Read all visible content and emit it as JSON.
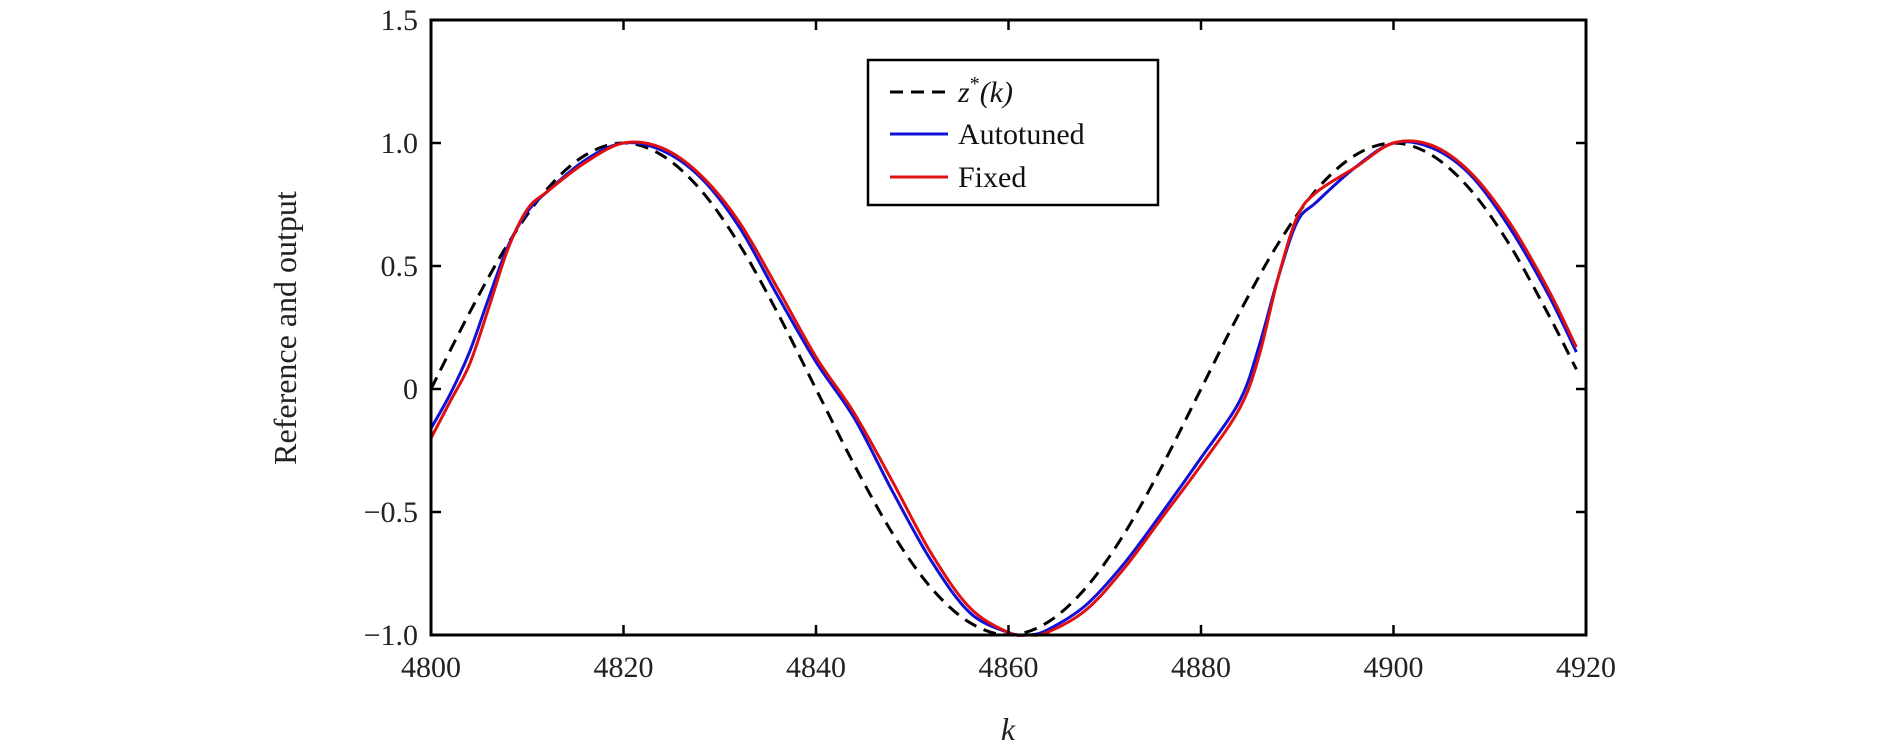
{
  "chart_data": {
    "type": "line",
    "title": "",
    "xlabel": "k",
    "ylabel": "Reference and output",
    "xlim": [
      4800,
      4920
    ],
    "ylim": [
      -1.0,
      1.5
    ],
    "xticks": [
      4800,
      4820,
      4840,
      4860,
      4880,
      4900,
      4920
    ],
    "yticks": [
      -1.0,
      -0.5,
      0,
      0.5,
      1.0,
      1.5
    ],
    "ytick_labels": [
      "−1.0",
      "−0.5",
      "0",
      "0.5",
      "1.0",
      "1.5"
    ],
    "xtick_labels": [
      "4800",
      "4820",
      "4840",
      "4860",
      "4880",
      "4900",
      "4920"
    ],
    "grid": false,
    "legend_position": "top-center",
    "series": [
      {
        "name": "z*(k)",
        "legend_main": "z",
        "legend_sup": "*",
        "legend_rest": "(k)",
        "color": "#000000",
        "style": "dashed",
        "x": [
          4800,
          4804,
          4808,
          4812,
          4816,
          4820,
          4824,
          4828,
          4832,
          4836,
          4840,
          4844,
          4848,
          4852,
          4856,
          4860,
          4864,
          4868,
          4872,
          4876,
          4880,
          4884,
          4888,
          4892,
          4896,
          4900,
          4904,
          4908,
          4912,
          4916,
          4919
        ],
        "y": [
          0.0,
          0.31,
          0.59,
          0.81,
          0.95,
          1.0,
          0.95,
          0.81,
          0.59,
          0.31,
          0.0,
          -0.31,
          -0.59,
          -0.81,
          -0.95,
          -1.0,
          -0.95,
          -0.81,
          -0.59,
          -0.31,
          0.0,
          0.31,
          0.59,
          0.81,
          0.95,
          1.0,
          0.95,
          0.81,
          0.59,
          0.31,
          0.08
        ]
      },
      {
        "name": "Autotuned",
        "color": "#1010d8",
        "style": "solid",
        "x": [
          4800,
          4802,
          4804,
          4806,
          4808,
          4810,
          4812,
          4816,
          4820,
          4824,
          4828,
          4832,
          4836,
          4840,
          4844,
          4848,
          4852,
          4856,
          4860,
          4862,
          4864,
          4868,
          4872,
          4876,
          4880,
          4884,
          4886,
          4888,
          4890,
          4892,
          4896,
          4900,
          4904,
          4908,
          4912,
          4916,
          4919
        ],
        "y": [
          -0.16,
          -0.02,
          0.15,
          0.37,
          0.58,
          0.72,
          0.8,
          0.93,
          1.0,
          0.97,
          0.86,
          0.66,
          0.38,
          0.11,
          -0.12,
          -0.42,
          -0.7,
          -0.91,
          -0.99,
          -1.0,
          -0.98,
          -0.88,
          -0.71,
          -0.5,
          -0.28,
          -0.05,
          0.17,
          0.45,
          0.68,
          0.76,
          0.9,
          1.0,
          0.98,
          0.87,
          0.66,
          0.39,
          0.15
        ]
      },
      {
        "name": "Fixed",
        "color": "#e01010",
        "style": "solid",
        "x": [
          4800,
          4802,
          4804,
          4806,
          4808,
          4810,
          4812,
          4816,
          4820,
          4824,
          4828,
          4832,
          4836,
          4840,
          4844,
          4848,
          4852,
          4856,
          4860,
          4862,
          4864,
          4868,
          4872,
          4876,
          4880,
          4884,
          4886,
          4888,
          4890,
          4892,
          4896,
          4900,
          4904,
          4908,
          4912,
          4916,
          4919
        ],
        "y": [
          -0.2,
          -0.05,
          0.1,
          0.33,
          0.57,
          0.73,
          0.8,
          0.92,
          1.0,
          0.98,
          0.87,
          0.68,
          0.41,
          0.13,
          -0.1,
          -0.38,
          -0.67,
          -0.89,
          -0.99,
          -1.0,
          -0.99,
          -0.9,
          -0.73,
          -0.52,
          -0.31,
          -0.08,
          0.13,
          0.45,
          0.7,
          0.8,
          0.9,
          1.0,
          0.99,
          0.88,
          0.68,
          0.41,
          0.17
        ]
      }
    ]
  }
}
